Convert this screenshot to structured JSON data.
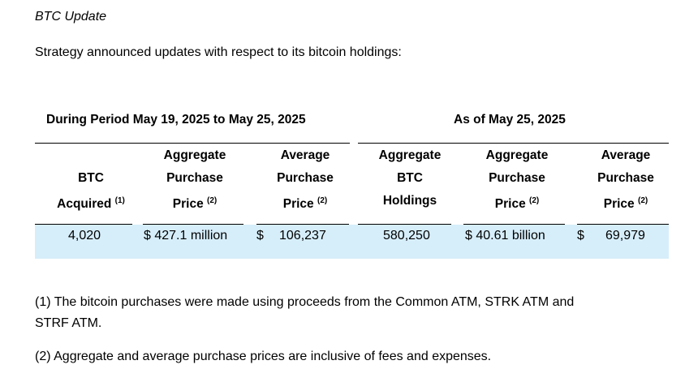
{
  "title": "BTC Update",
  "intro": "Strategy announced updates with respect to its bitcoin holdings:",
  "table": {
    "group_left": "During Period May 19, 2025 to May 25, 2025",
    "group_right": "As of May 25, 2025",
    "headers": [
      {
        "lines": [
          "",
          "BTC",
          "Acquired"
        ],
        "note": "(1)"
      },
      {
        "lines": [
          "Aggregate",
          "Purchase",
          "Price"
        ],
        "note": "(2)"
      },
      {
        "lines": [
          "Average",
          "Purchase",
          "Price"
        ],
        "note": "(2)"
      },
      {
        "lines": [
          "Aggregate",
          "BTC",
          "Holdings"
        ],
        "note": ""
      },
      {
        "lines": [
          "Aggregate",
          "Purchase",
          "Price"
        ],
        "note": "(2)"
      },
      {
        "lines": [
          "Average",
          "Purchase",
          "Price"
        ],
        "note": "(2)"
      }
    ],
    "row": {
      "btc_acquired": "4,020",
      "agg_price_period": "$ 427.1 million",
      "avg_price_period_currency": "$",
      "avg_price_period": "106,237",
      "agg_holdings": "580,250",
      "agg_price_total": "$ 40.61 billion",
      "avg_price_total_currency": "$",
      "avg_price_total": "69,979"
    },
    "highlight_color": "#d6eefa"
  },
  "footnotes": [
    "(1) The bitcoin purchases were made using proceeds from the Common ATM, STRK ATM and",
    "STRF ATM.",
    "(2) Aggregate and average purchase prices are inclusive of fees and expenses."
  ]
}
